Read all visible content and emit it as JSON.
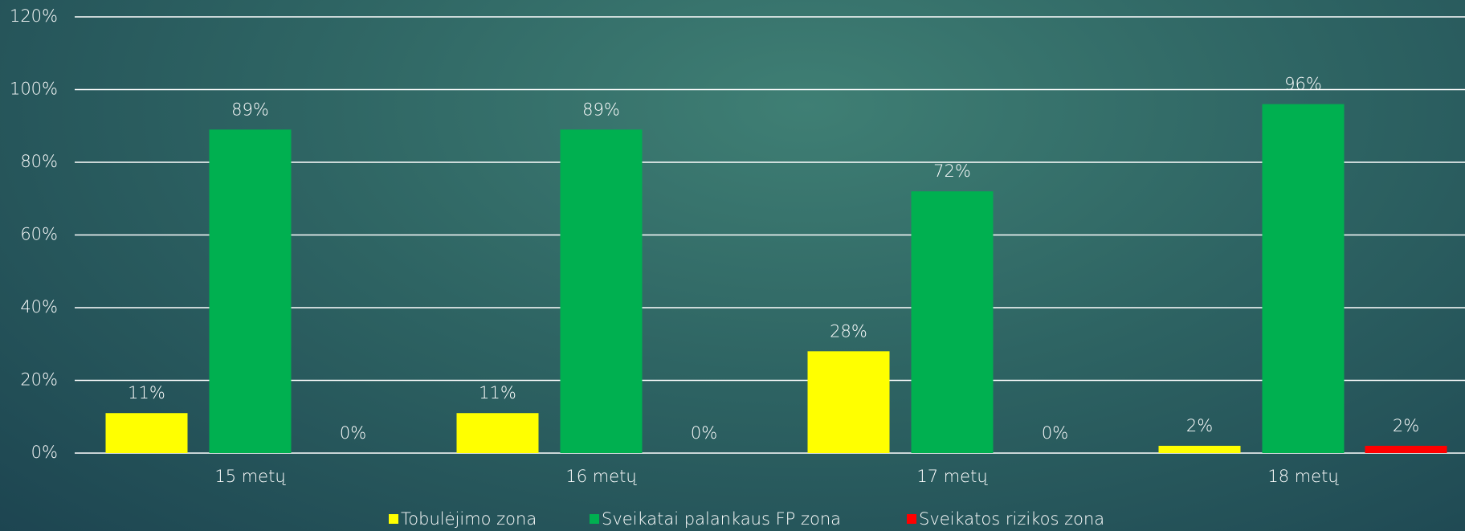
{
  "chart_data": {
    "type": "bar",
    "categories": [
      "15 metų",
      "16 metų",
      "17 metų",
      "18 metų"
    ],
    "series": [
      {
        "name": "Tobulėjimo zona",
        "color": "#ffff00",
        "values": [
          11,
          11,
          28,
          2
        ],
        "value_labels": [
          "11%",
          "11%",
          "28%",
          "2%"
        ]
      },
      {
        "name": "Sveikatai palankaus FP zona",
        "color": "#00b050",
        "values": [
          89,
          89,
          72,
          96
        ],
        "value_labels": [
          "89%",
          "89%",
          "72%",
          "96%"
        ]
      },
      {
        "name": "Sveikatos rizikos zona",
        "color": "#ff0000",
        "values": [
          0,
          0,
          0,
          2
        ],
        "value_labels": [
          "0%",
          "0%",
          "0%",
          "2%"
        ]
      }
    ],
    "ylim": [
      0,
      120
    ],
    "yticks": [
      {
        "value": 0,
        "label": "0%"
      },
      {
        "value": 20,
        "label": "20%"
      },
      {
        "value": 40,
        "label": "40%"
      },
      {
        "value": 60,
        "label": "60%"
      },
      {
        "value": 80,
        "label": "80%"
      },
      {
        "value": 100,
        "label": "100%"
      },
      {
        "value": 120,
        "label": "120%"
      }
    ],
    "grid": true,
    "legend": "bottom"
  }
}
